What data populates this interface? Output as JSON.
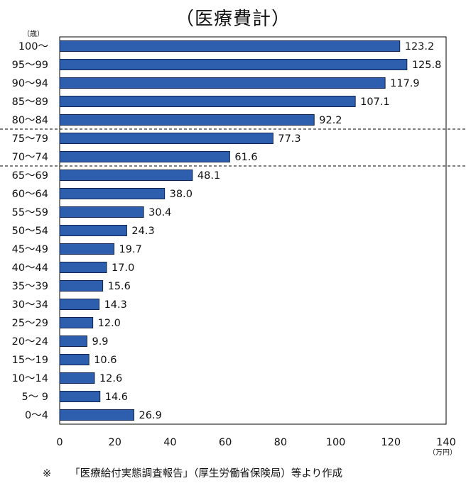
{
  "chart_data": {
    "type": "bar",
    "orientation": "horizontal",
    "title": "（医療費計）",
    "ylabel_unit": "（歳）",
    "xlabel_unit": "（万円）",
    "xlim": [
      0,
      140
    ],
    "xticks": [
      0,
      20,
      40,
      60,
      80,
      100,
      120,
      140
    ],
    "categories": [
      "100〜",
      "95〜99",
      "90〜94",
      "85〜89",
      "80〜84",
      "75〜79",
      "70〜74",
      "65〜69",
      "60〜64",
      "55〜59",
      "50〜54",
      "45〜49",
      "40〜44",
      "35〜39",
      "30〜34",
      "25〜29",
      "20〜24",
      "15〜19",
      "10〜14",
      "5〜 9",
      "0〜4"
    ],
    "values": [
      123.2,
      125.8,
      117.9,
      107.1,
      92.2,
      77.3,
      61.6,
      48.1,
      38.0,
      30.4,
      24.3,
      19.7,
      17.0,
      15.6,
      14.3,
      12.0,
      9.9,
      10.6,
      12.6,
      14.6,
      26.9
    ],
    "value_labels": [
      "123.2",
      "125.8",
      "117.9",
      "107.1",
      "92.2",
      "77.3",
      "61.6",
      "48.1",
      "38.0",
      "30.4",
      "24.3",
      "19.7",
      "17.0",
      "15.6",
      "14.3",
      "12.0",
      "9.9",
      "10.6",
      "12.6",
      "14.6",
      "26.9"
    ],
    "dashed_separators_after": [
      "80〜84",
      "70〜74"
    ],
    "bar_color": "#2e5fae",
    "bar_edge_color": "#10254d",
    "grid": false
  },
  "note": {
    "mark": "※",
    "text": "「医療給付実態調査報告」（厚生労働省保険局）等より作成"
  }
}
